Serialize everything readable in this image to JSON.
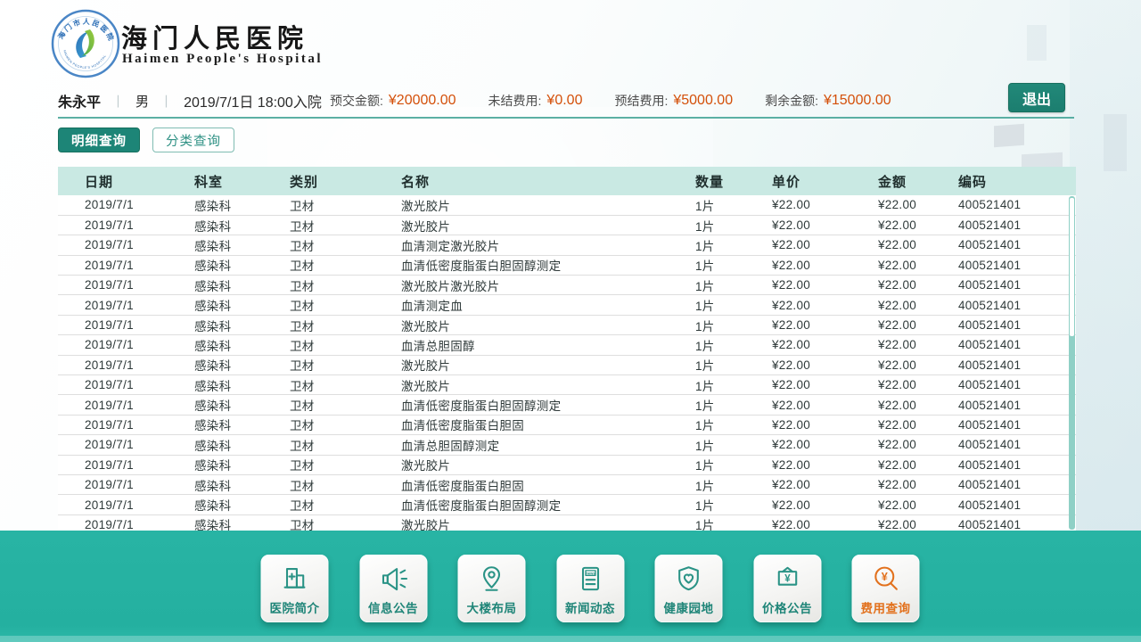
{
  "brand": {
    "hospital_name_zh": "海门人民医院",
    "hospital_name_en": "Haimen People's Hospital"
  },
  "patient_bar": {
    "name": "朱永平",
    "separator": "丨",
    "gender": "男",
    "admission": "2019/7/1日 18:00入院",
    "fees": [
      {
        "id": "prepaid",
        "label": "预交金额:",
        "value": "¥20000.00"
      },
      {
        "id": "unsettled",
        "label": "未结费用:",
        "value": "¥0.00"
      },
      {
        "id": "presettled",
        "label": "预结费用:",
        "value": "¥5000.00"
      },
      {
        "id": "remaining",
        "label": "剩余金额:",
        "value": "¥15000.00"
      }
    ],
    "exit_label": "退出"
  },
  "tabs": [
    {
      "id": "detail-query",
      "label": "明细查询",
      "active": true
    },
    {
      "id": "category-query",
      "label": "分类查询",
      "active": false
    }
  ],
  "table": {
    "columns": [
      "日期",
      "科室",
      "类别",
      "名称",
      "数量",
      "单价",
      "金额",
      "编码"
    ],
    "rows": [
      [
        "2019/7/1",
        "感染科",
        "卫材",
        "激光胶片",
        "1片",
        "¥22.00",
        "¥22.00",
        "400521401"
      ],
      [
        "2019/7/1",
        "感染科",
        "卫材",
        "激光胶片",
        "1片",
        "¥22.00",
        "¥22.00",
        "400521401"
      ],
      [
        "2019/7/1",
        "感染科",
        "卫材",
        "血清测定激光胶片",
        "1片",
        "¥22.00",
        "¥22.00",
        "400521401"
      ],
      [
        "2019/7/1",
        "感染科",
        "卫材",
        "血清低密度脂蛋白胆固醇测定",
        "1片",
        "¥22.00",
        "¥22.00",
        "400521401"
      ],
      [
        "2019/7/1",
        "感染科",
        "卫材",
        "激光胶片激光胶片",
        "1片",
        "¥22.00",
        "¥22.00",
        "400521401"
      ],
      [
        "2019/7/1",
        "感染科",
        "卫材",
        "血清测定血",
        "1片",
        "¥22.00",
        "¥22.00",
        "400521401"
      ],
      [
        "2019/7/1",
        "感染科",
        "卫材",
        "激光胶片",
        "1片",
        "¥22.00",
        "¥22.00",
        "400521401"
      ],
      [
        "2019/7/1",
        "感染科",
        "卫材",
        "血清总胆固醇",
        "1片",
        "¥22.00",
        "¥22.00",
        "400521401"
      ],
      [
        "2019/7/1",
        "感染科",
        "卫材",
        "激光胶片",
        "1片",
        "¥22.00",
        "¥22.00",
        "400521401"
      ],
      [
        "2019/7/1",
        "感染科",
        "卫材",
        "激光胶片",
        "1片",
        "¥22.00",
        "¥22.00",
        "400521401"
      ],
      [
        "2019/7/1",
        "感染科",
        "卫材",
        "血清低密度脂蛋白胆固醇测定",
        "1片",
        "¥22.00",
        "¥22.00",
        "400521401"
      ],
      [
        "2019/7/1",
        "感染科",
        "卫材",
        "血清低密度脂蛋白胆固",
        "1片",
        "¥22.00",
        "¥22.00",
        "400521401"
      ],
      [
        "2019/7/1",
        "感染科",
        "卫材",
        "血清总胆固醇测定",
        "1片",
        "¥22.00",
        "¥22.00",
        "400521401"
      ],
      [
        "2019/7/1",
        "感染科",
        "卫材",
        "激光胶片",
        "1片",
        "¥22.00",
        "¥22.00",
        "400521401"
      ],
      [
        "2019/7/1",
        "感染科",
        "卫材",
        "血清低密度脂蛋白胆固",
        "1片",
        "¥22.00",
        "¥22.00",
        "400521401"
      ],
      [
        "2019/7/1",
        "感染科",
        "卫材",
        "血清低密度脂蛋白胆固醇测定",
        "1片",
        "¥22.00",
        "¥22.00",
        "400521401"
      ],
      [
        "2019/7/1",
        "感染科",
        "卫材",
        "激光胶片",
        "1片",
        "¥22.00",
        "¥22.00",
        "400521401"
      ]
    ]
  },
  "footer": {
    "buttons": [
      {
        "id": "hospital-intro",
        "label": "医院简介",
        "icon": "hospital-building-icon",
        "active": false
      },
      {
        "id": "info-notice",
        "label": "信息公告",
        "icon": "megaphone-icon",
        "active": false
      },
      {
        "id": "building-layout",
        "label": "大楼布局",
        "icon": "map-pin-icon",
        "active": false
      },
      {
        "id": "news",
        "label": "新闻动态",
        "icon": "news-icon",
        "active": false
      },
      {
        "id": "health-garden",
        "label": "健康园地",
        "icon": "shield-heart-icon",
        "active": false
      },
      {
        "id": "price-notice",
        "label": "价格公告",
        "icon": "price-sign-icon",
        "active": false
      },
      {
        "id": "fee-inquiry",
        "label": "费用查询",
        "icon": "fee-search-icon",
        "active": true
      }
    ]
  },
  "colors": {
    "accent_teal": "#1d8577",
    "footer_teal": "#26b2a2",
    "table_header_band": "#c9e9e3",
    "value_orange": "#d4500a",
    "active_orange": "#e2711d"
  }
}
